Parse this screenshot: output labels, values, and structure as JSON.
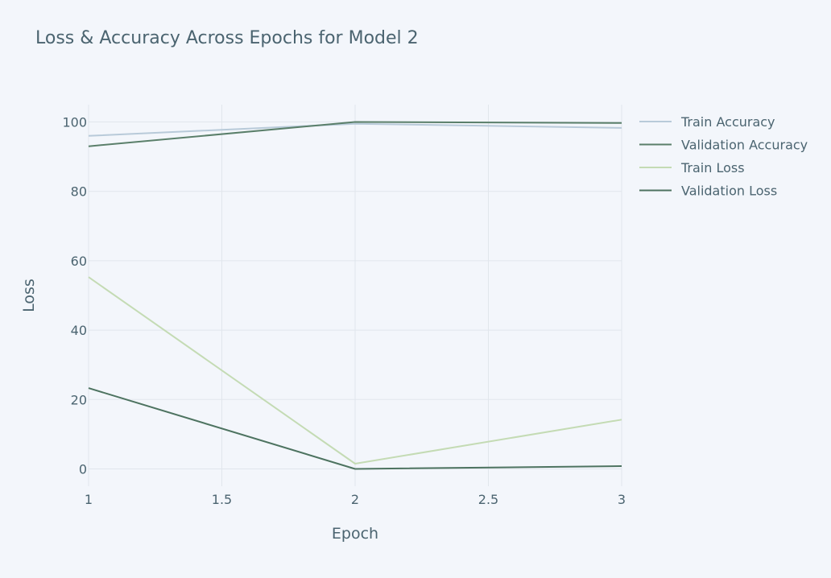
{
  "chart_data": {
    "type": "line",
    "title": "Loss & Accuracy Across Epochs for Model 2",
    "xlabel": "Epoch",
    "ylabel": "Loss",
    "xlim": [
      1,
      3
    ],
    "ylim": [
      -5,
      105
    ],
    "xticks": [
      1,
      1.5,
      2,
      2.5,
      3
    ],
    "xtick_labels": [
      "1",
      "1.5",
      "2",
      "2.5",
      "3"
    ],
    "yticks": [
      0,
      20,
      40,
      60,
      80,
      100
    ],
    "ytick_labels": [
      "0",
      "20",
      "40",
      "60",
      "80",
      "100"
    ],
    "grid": true,
    "legend_position": "top-right",
    "x": [
      1,
      2,
      3
    ],
    "series": [
      {
        "name": "Train Accuracy",
        "values": [
          96,
          99.5,
          98.3
        ],
        "color": "#b8cad9"
      },
      {
        "name": "Validation Accuracy",
        "values": [
          93,
          100,
          99.7
        ],
        "color": "#5a7f6a"
      },
      {
        "name": "Train Loss",
        "values": [
          55.3,
          1.5,
          14.2
        ],
        "color": "#c4dbb4"
      },
      {
        "name": "Validation Loss",
        "values": [
          23.3,
          0,
          0.8
        ],
        "color": "#4d7360"
      }
    ]
  },
  "colors": {
    "background": "#f3f6fb",
    "grid": "#e1e6ec",
    "text": "#4b6470"
  }
}
